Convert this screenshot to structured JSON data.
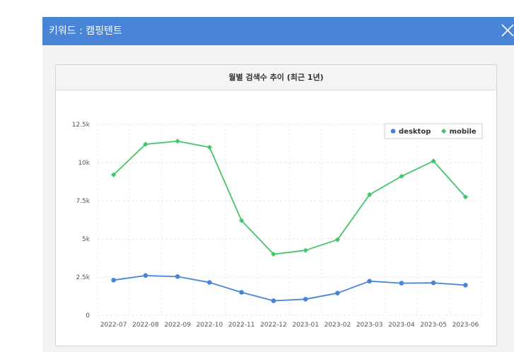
{
  "modal": {
    "title": "키워드 : 캠핑텐트",
    "close_icon": "close-icon",
    "header_color": "#4a84d6"
  },
  "chart_data": {
    "type": "line",
    "title": "월별 검색수 추이 (최근 1년)",
    "xlabel": "",
    "ylabel": "",
    "categories": [
      "2022-07",
      "2022-08",
      "2022-09",
      "2022-10",
      "2022-11",
      "2022-12",
      "2023-01",
      "2023-02",
      "2023-03",
      "2023-04",
      "2023-05",
      "2023-06"
    ],
    "ylim": [
      0,
      12500
    ],
    "yticks": [
      0,
      2500,
      5000,
      7500,
      10000,
      12500
    ],
    "ytick_labels": [
      "0",
      "2.5k",
      "5k",
      "7.5k",
      "10k",
      "12.5k"
    ],
    "grid": true,
    "legend_position": "top-right",
    "series": [
      {
        "name": "desktop",
        "color": "#4a84d6",
        "marker": "circle",
        "values": [
          2300,
          2600,
          2530,
          2150,
          1500,
          950,
          1050,
          1450,
          2230,
          2100,
          2120,
          1970
        ]
      },
      {
        "name": "mobile",
        "color": "#45c56a",
        "marker": "diamond",
        "values": [
          9200,
          11200,
          11400,
          11000,
          6200,
          4000,
          4250,
          4950,
          7900,
          9100,
          10100,
          7750
        ]
      }
    ]
  }
}
